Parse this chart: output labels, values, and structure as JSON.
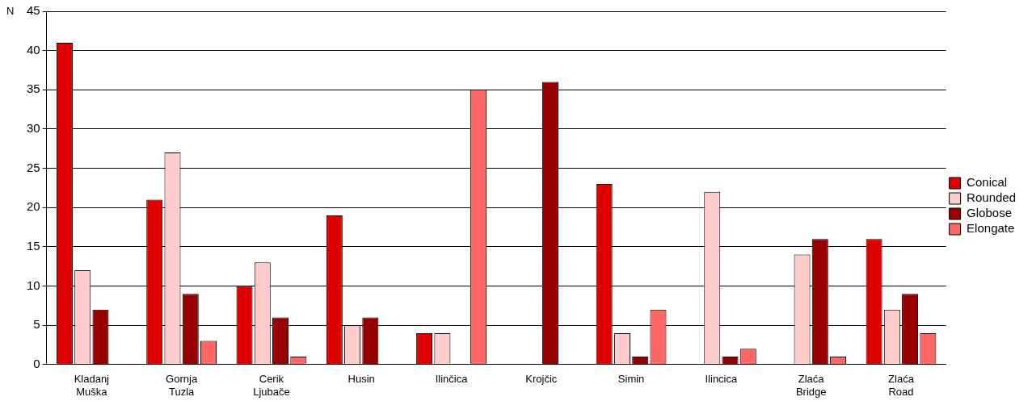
{
  "chart_data": {
    "type": "bar",
    "ylabel": "N",
    "categories": [
      "Kladanj Muška",
      "Gornja Tuzla",
      "Cerik Ljubače",
      "Husin",
      "Ilinčica",
      "Krojčic",
      "Simin",
      "Ilincica",
      "Zlaća Bridge",
      "Zlaća Road"
    ],
    "series": [
      {
        "name": "Conical",
        "color": "#e00000",
        "values": [
          41,
          21,
          10,
          19,
          4,
          0,
          23,
          0,
          0,
          16
        ]
      },
      {
        "name": "Rounded",
        "color": "#ffcccc",
        "values": [
          12,
          27,
          13,
          5,
          4,
          0,
          4,
          22,
          14,
          7
        ]
      },
      {
        "name": "Globose",
        "color": "#990000",
        "values": [
          7,
          9,
          6,
          6,
          0,
          36,
          1,
          1,
          16,
          9
        ]
      },
      {
        "name": "Elongate",
        "color": "#ff6666",
        "values": [
          0,
          3,
          1,
          0,
          35,
          0,
          7,
          2,
          1,
          4
        ]
      }
    ],
    "ylim": [
      0,
      45
    ],
    "yticks": [
      0,
      5,
      10,
      15,
      20,
      25,
      30,
      35,
      40,
      45
    ],
    "grid": "y",
    "legend": "right"
  }
}
